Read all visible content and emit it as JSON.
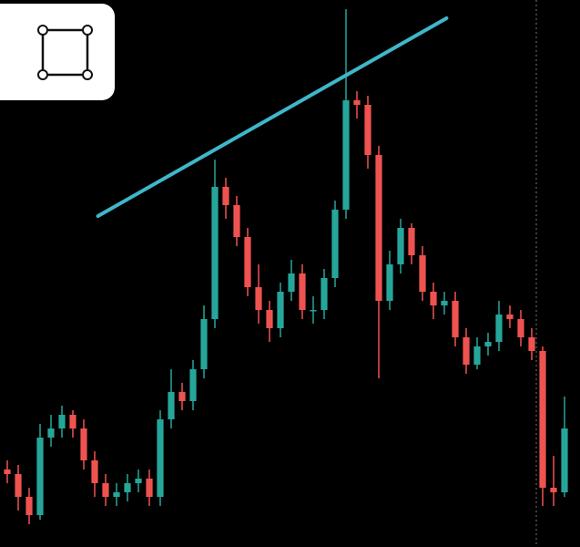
{
  "chart_data": {
    "type": "candlestick",
    "xlim": [
      -0.667,
      52.417
    ],
    "ylim": [
      0,
      600
    ],
    "up_color": "#26a69a",
    "down_color": "#ef5350",
    "open": [
      85,
      80,
      55,
      35,
      120,
      130,
      145,
      130,
      95,
      70,
      55,
      60,
      70,
      75,
      55,
      140,
      170,
      160,
      195,
      250,
      395,
      375,
      340,
      285,
      260,
      240,
      280,
      300,
      260,
      260,
      295,
      370,
      490,
      485,
      430,
      270,
      310,
      350,
      320,
      280,
      265,
      270,
      230,
      200,
      220,
      225,
      255,
      250,
      230,
      215,
      65,
      60
    ],
    "high": [
      95,
      90,
      65,
      135,
      145,
      155,
      150,
      140,
      105,
      80,
      70,
      80,
      85,
      85,
      150,
      195,
      180,
      205,
      265,
      425,
      405,
      385,
      350,
      310,
      270,
      290,
      315,
      310,
      275,
      305,
      380,
      590,
      500,
      495,
      440,
      325,
      360,
      355,
      330,
      290,
      280,
      280,
      240,
      230,
      235,
      270,
      265,
      260,
      240,
      220,
      100,
      165
    ],
    "low": [
      70,
      40,
      25,
      30,
      110,
      120,
      120,
      85,
      55,
      45,
      45,
      50,
      60,
      45,
      45,
      130,
      150,
      150,
      185,
      240,
      360,
      330,
      275,
      245,
      225,
      230,
      270,
      250,
      245,
      250,
      285,
      360,
      470,
      415,
      185,
      260,
      300,
      310,
      270,
      250,
      255,
      220,
      190,
      195,
      210,
      215,
      240,
      220,
      205,
      45,
      45,
      55
    ],
    "close": [
      80,
      55,
      35,
      120,
      130,
      145,
      130,
      95,
      70,
      55,
      60,
      70,
      75,
      55,
      140,
      170,
      160,
      195,
      250,
      395,
      375,
      340,
      285,
      260,
      240,
      280,
      300,
      260,
      260,
      295,
      370,
      490,
      485,
      430,
      270,
      310,
      350,
      320,
      280,
      265,
      270,
      230,
      200,
      220,
      225,
      255,
      250,
      230,
      215,
      65,
      60,
      130
    ],
    "trendline": {
      "x": [
        8.3,
        40.2
      ],
      "y": [
        363,
        580
      ],
      "color": "#3fb7c9"
    }
  }
}
